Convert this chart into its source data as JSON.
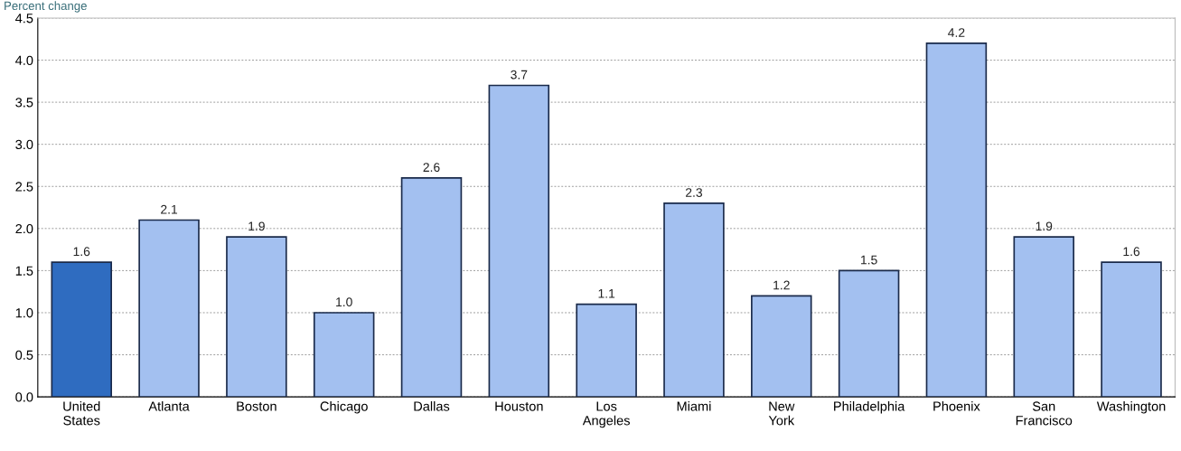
{
  "chart_data": {
    "type": "bar",
    "ylabel": "Percent change",
    "categories": [
      "United\nStates",
      "Atlanta",
      "Boston",
      "Chicago",
      "Dallas",
      "Houston",
      "Los\nAngeles",
      "Miami",
      "New\nYork",
      "Philadelphia",
      "Phoenix",
      "San\nFrancisco",
      "Washington"
    ],
    "values": [
      1.6,
      2.1,
      1.9,
      1.0,
      2.6,
      3.7,
      1.1,
      2.3,
      1.2,
      1.5,
      4.2,
      1.9,
      1.6
    ],
    "value_labels": [
      "1.6",
      "2.1",
      "1.9",
      "1.0",
      "2.6",
      "3.7",
      "1.1",
      "2.3",
      "1.2",
      "1.5",
      "4.2",
      "1.9",
      "1.6"
    ],
    "colors": [
      "#2f6cc0",
      "#a3c0f0",
      "#a3c0f0",
      "#a3c0f0",
      "#a3c0f0",
      "#a3c0f0",
      "#a3c0f0",
      "#a3c0f0",
      "#a3c0f0",
      "#a3c0f0",
      "#a3c0f0",
      "#a3c0f0",
      "#a3c0f0"
    ],
    "ylim": [
      0,
      4.5
    ],
    "yticks": [
      {
        "value": 0,
        "label": "0.0"
      },
      0.5,
      {
        "value": 1,
        "label": "1.0"
      },
      1.5,
      {
        "value": 2,
        "label": "2.0"
      },
      2.5,
      {
        "value": 3,
        "label": "3.0"
      },
      3.5,
      {
        "value": 4,
        "label": "4.0"
      },
      4.5
    ],
    "grid": "y"
  }
}
